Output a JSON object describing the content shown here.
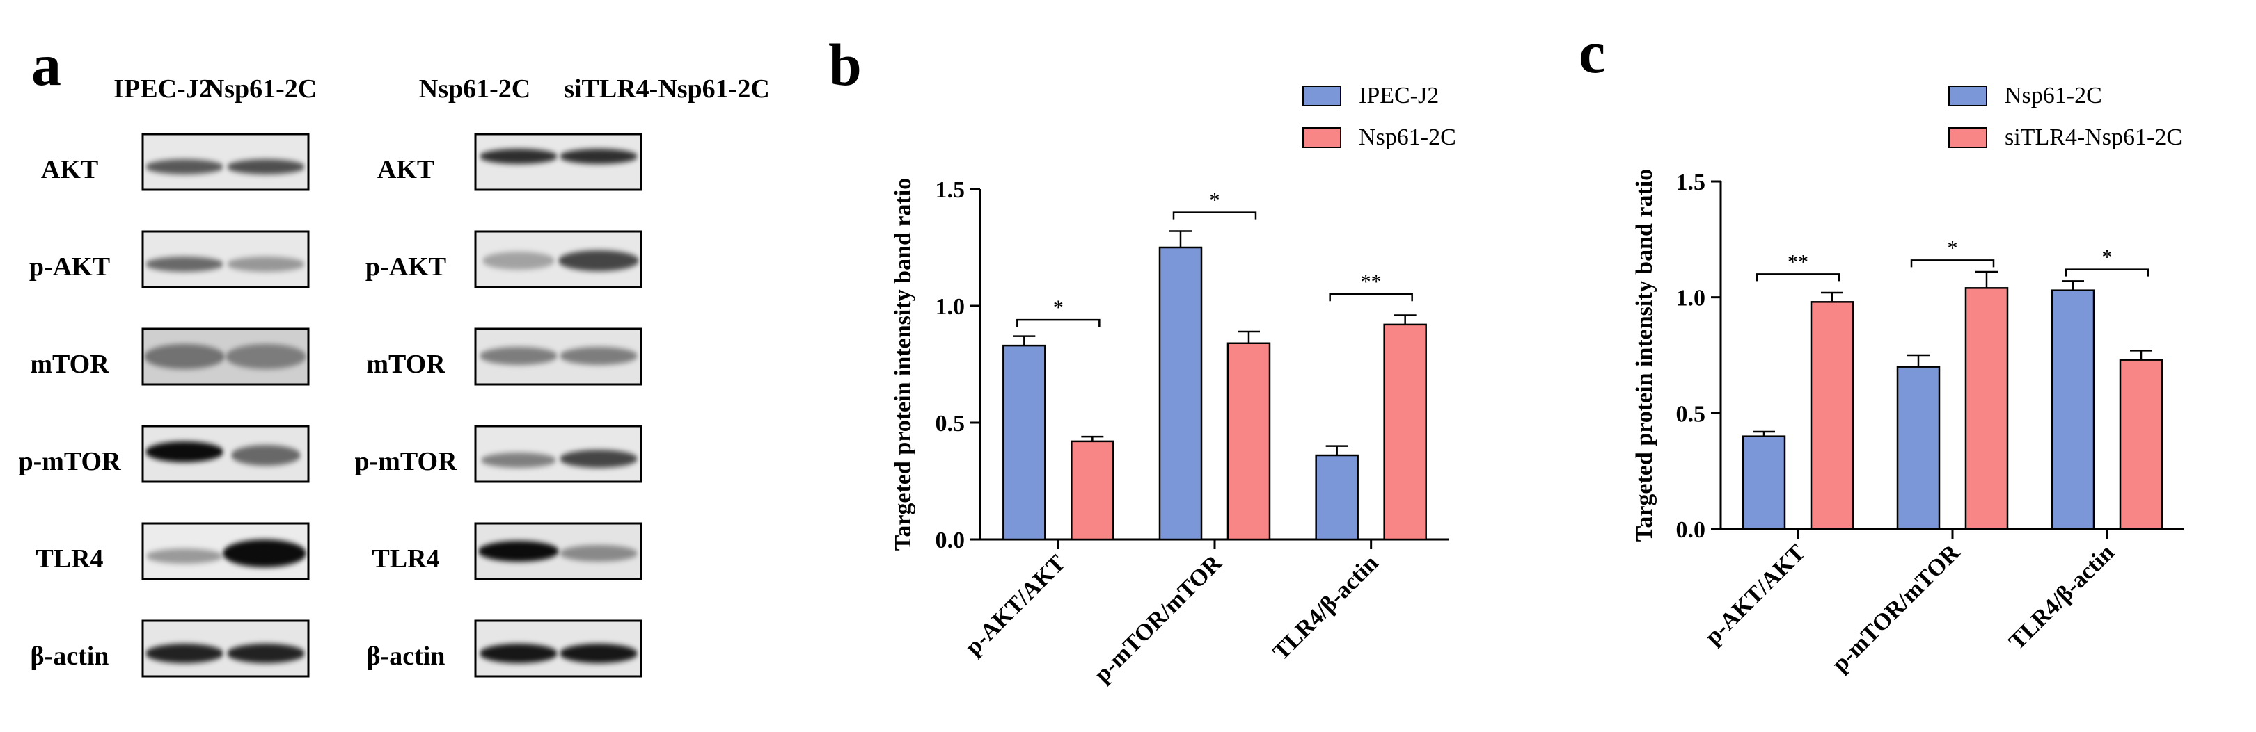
{
  "panel_a": {
    "letter": "a",
    "blot_left": {
      "lanes": [
        "IPEC-J2",
        "Nsp61-2C"
      ],
      "rows": [
        {
          "label": "AKT",
          "intensity": [
            0.62,
            0.66
          ]
        },
        {
          "label": "p-AKT",
          "intensity": [
            0.55,
            0.35
          ]
        },
        {
          "label": "mTOR",
          "intensity": [
            0.45,
            0.4
          ]
        },
        {
          "label": "p-mTOR",
          "intensity": [
            0.95,
            0.55
          ]
        },
        {
          "label": "TLR4",
          "intensity": [
            0.35,
            0.95
          ]
        },
        {
          "label": "β-actin",
          "intensity": [
            0.85,
            0.85
          ]
        }
      ]
    },
    "blot_right": {
      "lanes": [
        "Nsp61-2C",
        "siTLR4-Nsp61-2C"
      ],
      "rows": [
        {
          "label": "AKT",
          "intensity": [
            0.8,
            0.8
          ]
        },
        {
          "label": "p-AKT",
          "intensity": [
            0.3,
            0.7
          ]
        },
        {
          "label": "mTOR",
          "intensity": [
            0.45,
            0.45
          ]
        },
        {
          "label": "p-mTOR",
          "intensity": [
            0.45,
            0.7
          ]
        },
        {
          "label": "TLR4",
          "intensity": [
            0.95,
            0.4
          ]
        },
        {
          "label": "β-actin",
          "intensity": [
            0.9,
            0.9
          ]
        }
      ]
    }
  },
  "chart_data": [
    {
      "panel_letter": "b",
      "type": "bar",
      "ylabel": "Targeted protein intensity band ratio",
      "ylim": [
        0,
        1.5
      ],
      "yticks": [
        "0.0",
        "0.5",
        "1.0",
        "1.5"
      ],
      "categories": [
        "p-AKT/AKT",
        "p-mTOR/mTOR",
        "TLR4/β-actin"
      ],
      "series": [
        {
          "name": "IPEC-J2",
          "color": "#7c97d8",
          "values": [
            0.83,
            1.25,
            0.36
          ],
          "errors": [
            0.04,
            0.07,
            0.04
          ]
        },
        {
          "name": "Nsp61-2C",
          "color": "#f88686",
          "values": [
            0.42,
            0.84,
            0.92
          ],
          "errors": [
            0.02,
            0.05,
            0.04
          ]
        }
      ],
      "significance": [
        "*",
        "*",
        "**"
      ],
      "sig_levels": [
        0.94,
        1.4,
        1.05
      ],
      "legend_position": "top-right"
    },
    {
      "panel_letter": "c",
      "type": "bar",
      "ylabel": "Targeted protein intensity band ratio",
      "ylim": [
        0,
        1.5
      ],
      "yticks": [
        "0.0",
        "0.5",
        "1.0",
        "1.5"
      ],
      "categories": [
        "p-AKT/AKT",
        "p-mTOR/mTOR",
        "TLR4/β-actin"
      ],
      "series": [
        {
          "name": "Nsp61-2C",
          "color": "#7c97d8",
          "values": [
            0.4,
            0.7,
            1.03
          ],
          "errors": [
            0.02,
            0.05,
            0.04
          ]
        },
        {
          "name": "siTLR4-Nsp61-2C",
          "color": "#f88686",
          "values": [
            0.98,
            1.04,
            0.73
          ],
          "errors": [
            0.04,
            0.07,
            0.04
          ]
        }
      ],
      "significance": [
        "**",
        "*",
        "*"
      ],
      "sig_levels": [
        1.1,
        1.16,
        1.12
      ],
      "legend_position": "top-right"
    }
  ]
}
